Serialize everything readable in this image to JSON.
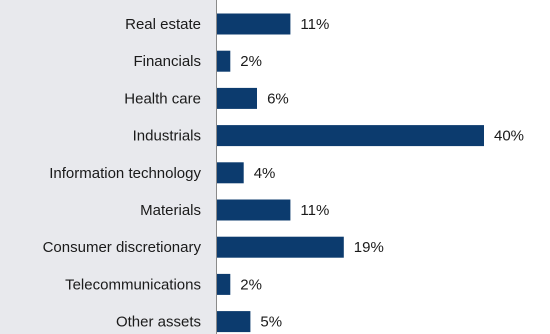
{
  "chart_data": {
    "type": "bar",
    "orientation": "horizontal",
    "categories": [
      "Real estate",
      "Financials",
      "Health care",
      "Industrials",
      "Information technology",
      "Materials",
      "Consumer discretionary",
      "Telecommunications",
      "Other assets"
    ],
    "values": [
      11,
      2,
      6,
      40,
      4,
      11,
      19,
      2,
      5
    ],
    "value_labels": [
      "11%",
      "2%",
      "6%",
      "40%",
      "4%",
      "11%",
      "19%",
      "2%",
      "5%"
    ],
    "xlim": [
      0,
      40
    ],
    "grid": false,
    "legend": "none"
  },
  "colors": {
    "bar": "#0c3b6e",
    "background": "#e8e9ed",
    "text": "#1a1a1a",
    "axis": "#8a8a8a"
  }
}
